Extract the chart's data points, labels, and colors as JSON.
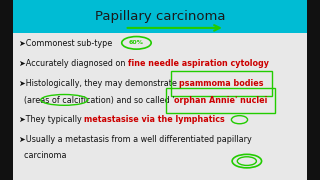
{
  "title": "Papillary carcinoma",
  "title_bg": "#00bcd4",
  "title_color": "#1a1a1a",
  "bg_color": "#e8e8e8",
  "black_border": "#111111",
  "highlight_red": "#cc0000",
  "green_color": "#22cc00",
  "lines": [
    {
      "text": "➤Commonest sub-type",
      "parts": [
        {
          "t": "➤Commonest sub-type",
          "color": "#111111",
          "bold": false,
          "box": false
        }
      ]
    },
    {
      "text": "accurately diagnosed",
      "parts": [
        {
          "t": "➤Accurately diagnosed on ",
          "color": "#111111",
          "bold": false,
          "box": false
        },
        {
          "t": "fine needle aspiration cytology",
          "color": "#cc0000",
          "bold": true,
          "box": false
        }
      ]
    },
    {
      "text": "histologically",
      "parts": [
        {
          "t": "➤Histologically, they may demonstrate ",
          "color": "#111111",
          "bold": false,
          "box": false
        },
        {
          "t": "psammoma bodies",
          "color": "#cc0000",
          "bold": true,
          "box": true
        }
      ]
    },
    {
      "text": "areas",
      "parts": [
        {
          "t": "  (areas of calcification) and so called '",
          "color": "#111111",
          "bold": false,
          "box": false
        },
        {
          "t": "orphan Annie' nuclei",
          "color": "#cc0000",
          "bold": true,
          "box": true
        }
      ]
    },
    {
      "text": "they typically",
      "parts": [
        {
          "t": "➤They typically ",
          "color": "#111111",
          "bold": false,
          "box": false
        },
        {
          "t": "metastasise via the lymphatics",
          "color": "#cc0000",
          "bold": true,
          "box": false
        }
      ]
    },
    {
      "text": "usually",
      "parts": [
        {
          "t": "➤Usually a metastasis from a well differentiated papillary",
          "color": "#111111",
          "bold": false,
          "box": false
        }
      ]
    },
    {
      "text": "carcinoma",
      "parts": [
        {
          "t": "  carcinoma",
          "color": "#111111",
          "bold": false,
          "box": false
        }
      ]
    }
  ],
  "font_size": 5.8,
  "title_font_size": 9.5
}
